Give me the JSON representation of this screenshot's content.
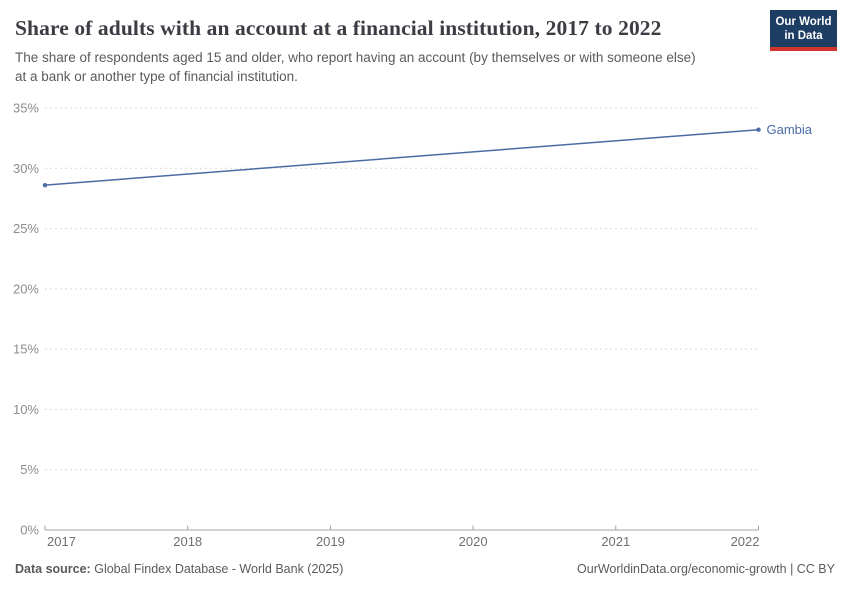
{
  "header": {
    "title": "Share of adults with an account at a financial institution, 2017 to 2022",
    "subtitle": "The share of respondents aged 15 and older, who report having an account (by themselves or with someone else) at a bank or another type of financial institution.",
    "logo": {
      "line1": "Our World",
      "line2": "in Data"
    }
  },
  "chart_data": {
    "type": "line",
    "title": "Share of adults with an account at a financial institution, 2017 to 2022",
    "x": [
      2017,
      2022
    ],
    "series": [
      {
        "name": "Gambia",
        "values": [
          28.6,
          33.2
        ],
        "color": "#4a6ba5"
      }
    ],
    "xlim": [
      2017,
      2022
    ],
    "ylim": [
      0,
      35
    ],
    "xticks": [
      2017,
      2018,
      2019,
      2020,
      2021,
      2022
    ],
    "yticks": [
      0,
      5,
      10,
      15,
      20,
      25,
      30,
      35
    ],
    "ytick_suffix": "%",
    "grid": "horizontal-dashed",
    "legend_position": "end-of-line-label"
  },
  "colors": {
    "line_blue": "#4a6ba5",
    "logo_background": "#1d3d63",
    "logo_stripe": "#d0342c",
    "gridline": "#d9d9d9",
    "axis": "#a3a3a3",
    "y_tick_label": "#8c8c8c",
    "x_tick_label": "#707070",
    "text_gray": "#5a5a5a",
    "title_color": "#3c3c44"
  },
  "footer": {
    "data_source_label": "Data source:",
    "data_source_value": "Global Findex Database - World Bank (2025)",
    "link_text": "OurWorldinData.org/economic-growth | CC BY"
  }
}
